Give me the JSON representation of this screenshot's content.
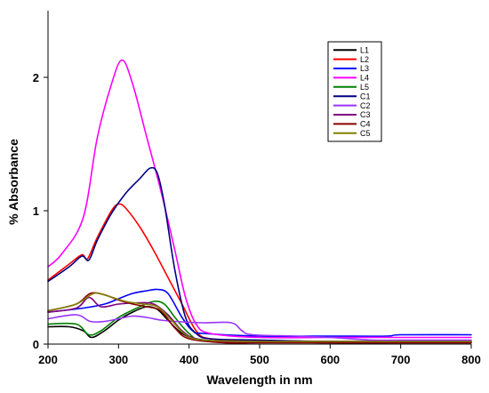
{
  "chart_data": {
    "type": "line",
    "title": "",
    "xlabel": "Wavelength in nm",
    "ylabel": "% Absorbance",
    "xlim": [
      200,
      800
    ],
    "ylim": [
      0,
      2.5
    ],
    "x_ticks": [
      200,
      300,
      400,
      500,
      600,
      700,
      800
    ],
    "y_ticks": [
      0,
      1,
      2
    ],
    "grid": false,
    "legend_position": "top-right",
    "series": [
      {
        "name": "L1",
        "color": "#000000",
        "points": [
          [
            200,
            0.13
          ],
          [
            230,
            0.13
          ],
          [
            250,
            0.1
          ],
          [
            262,
            0.05
          ],
          [
            280,
            0.1
          ],
          [
            300,
            0.18
          ],
          [
            320,
            0.24
          ],
          [
            340,
            0.28
          ],
          [
            355,
            0.26
          ],
          [
            370,
            0.18
          ],
          [
            390,
            0.08
          ],
          [
            410,
            0.04
          ],
          [
            450,
            0.02
          ],
          [
            500,
            0.02
          ],
          [
            600,
            0.01
          ],
          [
            700,
            0.01
          ],
          [
            800,
            0.01
          ]
        ]
      },
      {
        "name": "L2",
        "color": "#ff0000",
        "points": [
          [
            200,
            0.48
          ],
          [
            230,
            0.6
          ],
          [
            248,
            0.67
          ],
          [
            256,
            0.64
          ],
          [
            270,
            0.8
          ],
          [
            290,
            1.0
          ],
          [
            300,
            1.05
          ],
          [
            310,
            1.02
          ],
          [
            330,
            0.88
          ],
          [
            350,
            0.7
          ],
          [
            370,
            0.5
          ],
          [
            390,
            0.3
          ],
          [
            410,
            0.1
          ],
          [
            430,
            0.04
          ],
          [
            500,
            0.02
          ],
          [
            600,
            0.02
          ],
          [
            700,
            0.02
          ],
          [
            800,
            0.02
          ]
        ]
      },
      {
        "name": "L3",
        "color": "#0000ff",
        "points": [
          [
            200,
            0.24
          ],
          [
            250,
            0.27
          ],
          [
            280,
            0.3
          ],
          [
            300,
            0.34
          ],
          [
            320,
            0.38
          ],
          [
            340,
            0.4
          ],
          [
            355,
            0.41
          ],
          [
            370,
            0.38
          ],
          [
            390,
            0.2
          ],
          [
            405,
            0.1
          ],
          [
            420,
            0.08
          ],
          [
            500,
            0.06
          ],
          [
            600,
            0.06
          ],
          [
            680,
            0.06
          ],
          [
            700,
            0.07
          ],
          [
            800,
            0.07
          ]
        ]
      },
      {
        "name": "L4",
        "color": "#ff00ff",
        "points": [
          [
            200,
            0.58
          ],
          [
            220,
            0.68
          ],
          [
            250,
            0.95
          ],
          [
            270,
            1.55
          ],
          [
            290,
            1.95
          ],
          [
            305,
            2.13
          ],
          [
            320,
            1.95
          ],
          [
            340,
            1.55
          ],
          [
            360,
            1.15
          ],
          [
            380,
            0.7
          ],
          [
            395,
            0.35
          ],
          [
            410,
            0.15
          ],
          [
            430,
            0.08
          ],
          [
            500,
            0.05
          ],
          [
            600,
            0.05
          ],
          [
            700,
            0.05
          ],
          [
            800,
            0.05
          ]
        ]
      },
      {
        "name": "L5",
        "color": "#008000",
        "points": [
          [
            200,
            0.15
          ],
          [
            240,
            0.15
          ],
          [
            258,
            0.07
          ],
          [
            275,
            0.1
          ],
          [
            300,
            0.2
          ],
          [
            330,
            0.28
          ],
          [
            350,
            0.32
          ],
          [
            365,
            0.3
          ],
          [
            380,
            0.2
          ],
          [
            400,
            0.08
          ],
          [
            420,
            0.03
          ],
          [
            500,
            0.02
          ],
          [
            600,
            0.02
          ],
          [
            700,
            0.02
          ],
          [
            800,
            0.02
          ]
        ]
      },
      {
        "name": "C1",
        "color": "#000080",
        "points": [
          [
            200,
            0.47
          ],
          [
            230,
            0.58
          ],
          [
            248,
            0.66
          ],
          [
            258,
            0.63
          ],
          [
            270,
            0.78
          ],
          [
            290,
            0.98
          ],
          [
            310,
            1.13
          ],
          [
            330,
            1.24
          ],
          [
            345,
            1.32
          ],
          [
            355,
            1.28
          ],
          [
            365,
            1.05
          ],
          [
            380,
            0.55
          ],
          [
            395,
            0.2
          ],
          [
            410,
            0.08
          ],
          [
            430,
            0.04
          ],
          [
            500,
            0.03
          ],
          [
            600,
            0.02
          ],
          [
            700,
            0.02
          ],
          [
            800,
            0.02
          ]
        ]
      },
      {
        "name": "C2",
        "color": "#9933ff",
        "points": [
          [
            200,
            0.19
          ],
          [
            240,
            0.22
          ],
          [
            260,
            0.17
          ],
          [
            280,
            0.17
          ],
          [
            300,
            0.19
          ],
          [
            320,
            0.21
          ],
          [
            340,
            0.2
          ],
          [
            360,
            0.18
          ],
          [
            380,
            0.17
          ],
          [
            420,
            0.16
          ],
          [
            460,
            0.16
          ],
          [
            475,
            0.1
          ],
          [
            490,
            0.07
          ],
          [
            550,
            0.06
          ],
          [
            600,
            0.05
          ],
          [
            660,
            0.03
          ],
          [
            700,
            0.03
          ],
          [
            800,
            0.03
          ]
        ]
      },
      {
        "name": "C3",
        "color": "#800080",
        "points": [
          [
            200,
            0.24
          ],
          [
            240,
            0.27
          ],
          [
            258,
            0.35
          ],
          [
            275,
            0.28
          ],
          [
            300,
            0.3
          ],
          [
            330,
            0.31
          ],
          [
            350,
            0.3
          ],
          [
            370,
            0.22
          ],
          [
            390,
            0.1
          ],
          [
            410,
            0.04
          ],
          [
            450,
            0.02
          ],
          [
            500,
            0.02
          ],
          [
            600,
            0.02
          ],
          [
            700,
            0.02
          ],
          [
            800,
            0.02
          ]
        ]
      },
      {
        "name": "C4",
        "color": "#8b0000",
        "points": [
          [
            200,
            0.25
          ],
          [
            240,
            0.3
          ],
          [
            260,
            0.38
          ],
          [
            280,
            0.37
          ],
          [
            300,
            0.33
          ],
          [
            320,
            0.3
          ],
          [
            340,
            0.28
          ],
          [
            360,
            0.25
          ],
          [
            380,
            0.12
          ],
          [
            400,
            0.04
          ],
          [
            450,
            0.01
          ],
          [
            500,
            0.01
          ],
          [
            600,
            0.01
          ],
          [
            700,
            0.01
          ],
          [
            800,
            0.01
          ]
        ]
      },
      {
        "name": "C5",
        "color": "#808000",
        "points": [
          [
            200,
            0.25
          ],
          [
            240,
            0.3
          ],
          [
            265,
            0.38
          ],
          [
            285,
            0.36
          ],
          [
            310,
            0.32
          ],
          [
            335,
            0.3
          ],
          [
            355,
            0.28
          ],
          [
            375,
            0.18
          ],
          [
            395,
            0.07
          ],
          [
            420,
            0.03
          ],
          [
            500,
            0.02
          ],
          [
            600,
            0.02
          ],
          [
            700,
            0.02
          ],
          [
            800,
            0.02
          ]
        ]
      }
    ]
  }
}
